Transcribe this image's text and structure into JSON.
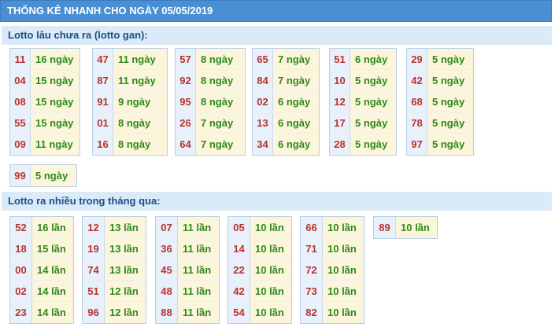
{
  "header": {
    "title": "THỐNG KÊ NHANH CHO NGÀY 05/05/2019"
  },
  "sections": [
    {
      "title": "Lotto lâu chưa ra (lotto gan):"
    },
    {
      "title": "Lotto ra nhiều trong tháng qua:"
    }
  ],
  "lotto_gan": [
    [
      {
        "num": "11",
        "val": "16 ngày"
      },
      {
        "num": "04",
        "val": "15 ngày"
      },
      {
        "num": "08",
        "val": "15 ngày"
      },
      {
        "num": "55",
        "val": "15 ngày"
      },
      {
        "num": "09",
        "val": "11 ngày"
      }
    ],
    [
      {
        "num": "47",
        "val": "11 ngày"
      },
      {
        "num": "87",
        "val": "11 ngày"
      },
      {
        "num": "91",
        "val": "9 ngày"
      },
      {
        "num": "01",
        "val": "8 ngày"
      },
      {
        "num": "16",
        "val": "8 ngày"
      }
    ],
    [
      {
        "num": "57",
        "val": "8 ngày"
      },
      {
        "num": "92",
        "val": "8 ngày"
      },
      {
        "num": "95",
        "val": "8 ngày"
      },
      {
        "num": "26",
        "val": "7 ngày"
      },
      {
        "num": "64",
        "val": "7 ngày"
      }
    ],
    [
      {
        "num": "65",
        "val": "7 ngày"
      },
      {
        "num": "84",
        "val": "7 ngày"
      },
      {
        "num": "02",
        "val": "6 ngày"
      },
      {
        "num": "13",
        "val": "6 ngày"
      },
      {
        "num": "34",
        "val": "6 ngày"
      }
    ],
    [
      {
        "num": "51",
        "val": "6 ngày"
      },
      {
        "num": "10",
        "val": "5 ngày"
      },
      {
        "num": "12",
        "val": "5 ngày"
      },
      {
        "num": "17",
        "val": "5 ngày"
      },
      {
        "num": "28",
        "val": "5 ngày"
      }
    ],
    [
      {
        "num": "29",
        "val": "5 ngày"
      },
      {
        "num": "42",
        "val": "5 ngày"
      },
      {
        "num": "68",
        "val": "5 ngày"
      },
      {
        "num": "78",
        "val": "5 ngày"
      },
      {
        "num": "97",
        "val": "5 ngày"
      }
    ],
    [
      {
        "num": "99",
        "val": "5 ngày"
      }
    ]
  ],
  "lotto_nhieu": [
    [
      {
        "num": "52",
        "val": "16 lần"
      },
      {
        "num": "18",
        "val": "15 lần"
      },
      {
        "num": "00",
        "val": "14 lần"
      },
      {
        "num": "02",
        "val": "14 lần"
      },
      {
        "num": "23",
        "val": "14 lần"
      }
    ],
    [
      {
        "num": "12",
        "val": "13 lần"
      },
      {
        "num": "19",
        "val": "13 lần"
      },
      {
        "num": "74",
        "val": "13 lần"
      },
      {
        "num": "51",
        "val": "12 lần"
      },
      {
        "num": "96",
        "val": "12 lần"
      }
    ],
    [
      {
        "num": "07",
        "val": "11 lần"
      },
      {
        "num": "36",
        "val": "11 lần"
      },
      {
        "num": "45",
        "val": "11 lần"
      },
      {
        "num": "48",
        "val": "11 lần"
      },
      {
        "num": "88",
        "val": "11 lần"
      }
    ],
    [
      {
        "num": "05",
        "val": "10 lần"
      },
      {
        "num": "14",
        "val": "10 lần"
      },
      {
        "num": "22",
        "val": "10 lần"
      },
      {
        "num": "42",
        "val": "10 lần"
      },
      {
        "num": "54",
        "val": "10 lần"
      }
    ],
    [
      {
        "num": "66",
        "val": "10 lần"
      },
      {
        "num": "71",
        "val": "10 lần"
      },
      {
        "num": "72",
        "val": "10 lần"
      },
      {
        "num": "73",
        "val": "10 lần"
      },
      {
        "num": "82",
        "val": "10 lần"
      }
    ],
    [
      {
        "num": "89",
        "val": "10 lần"
      }
    ]
  ]
}
